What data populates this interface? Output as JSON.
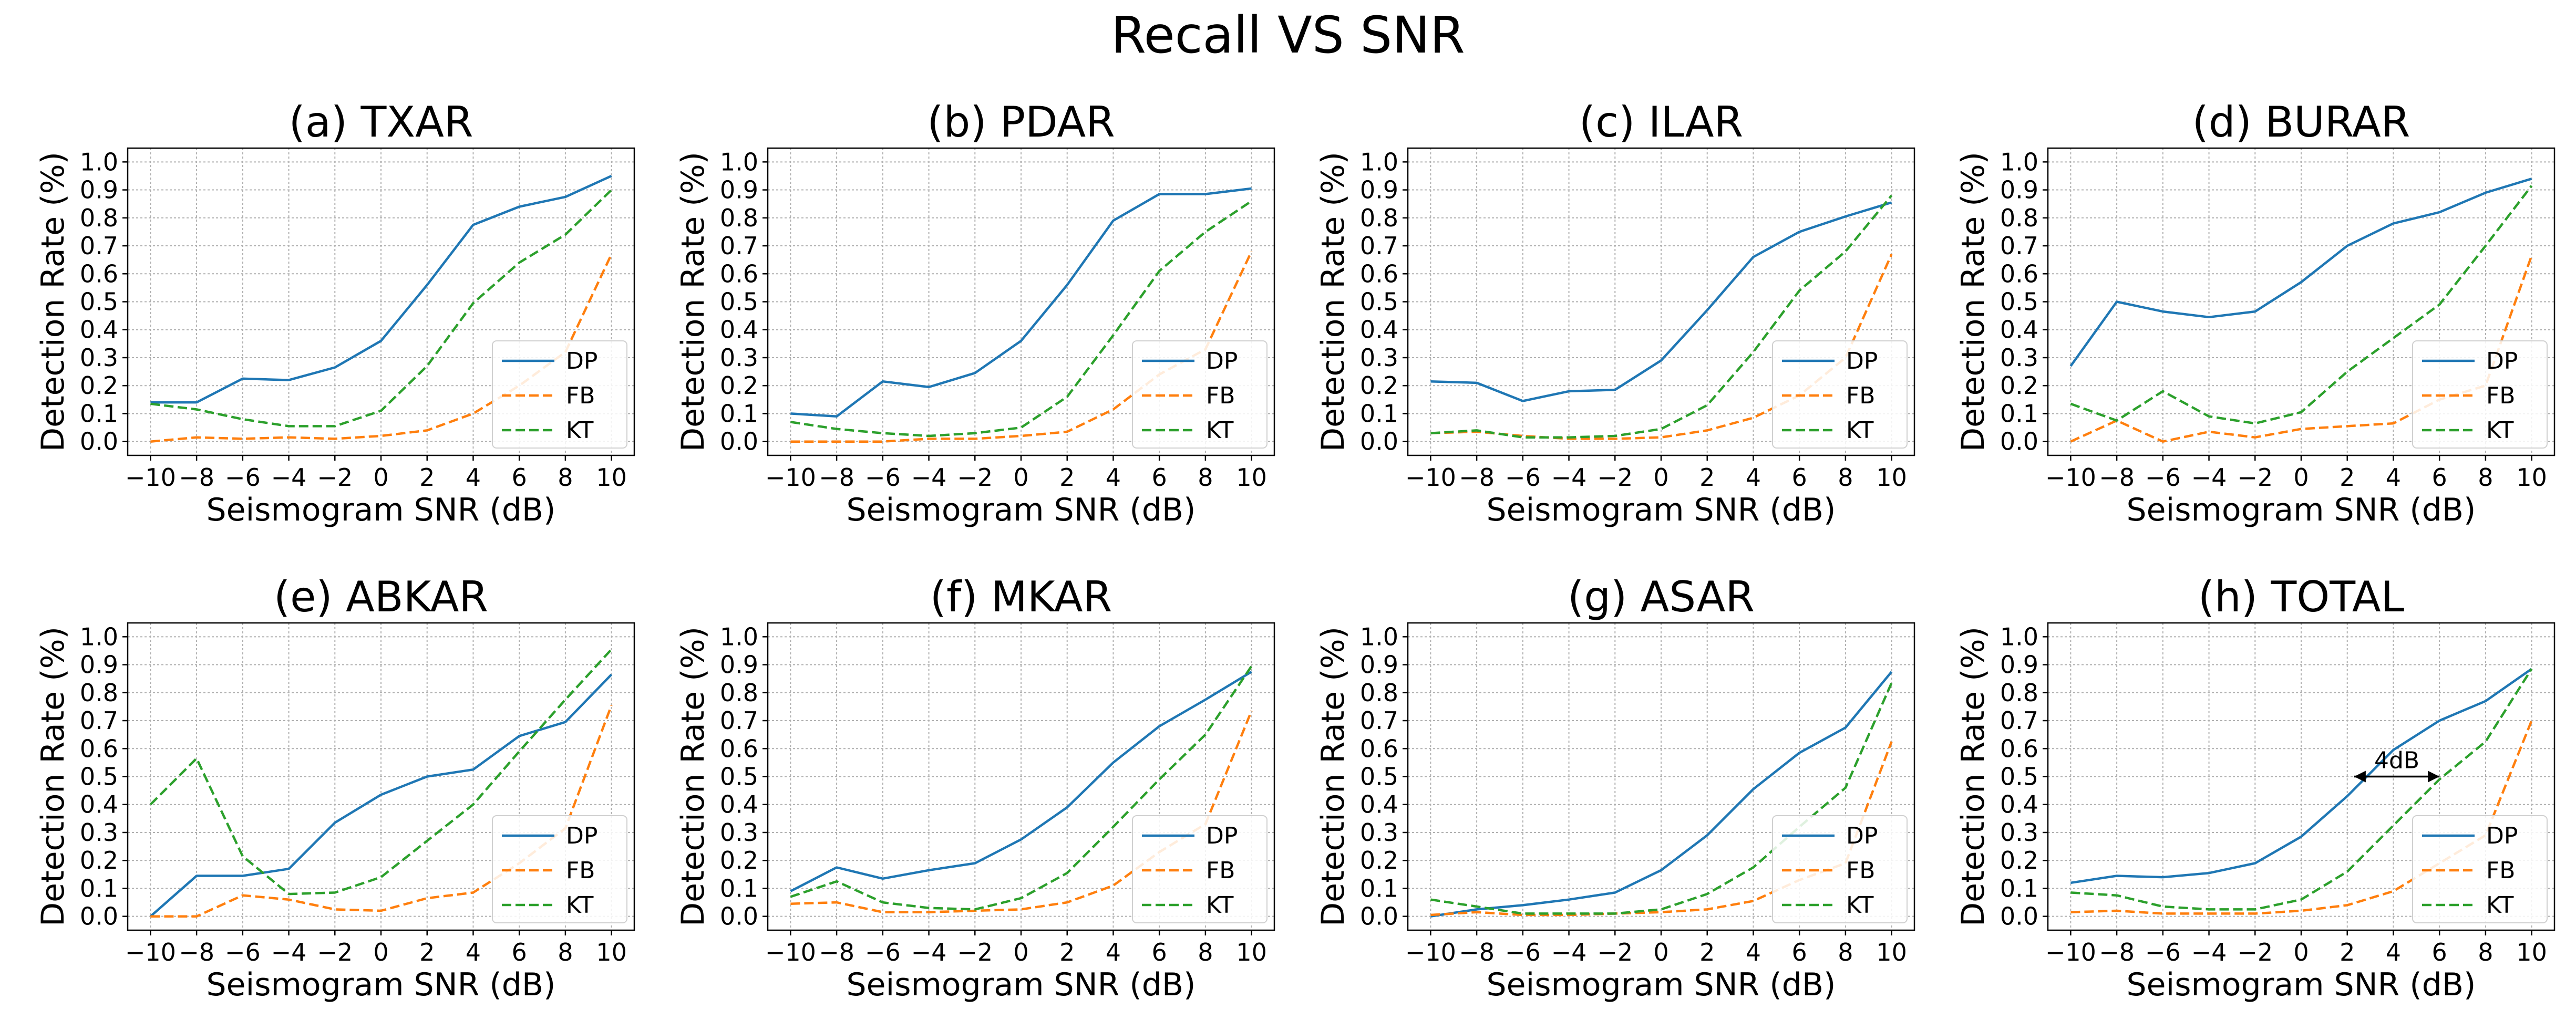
{
  "figure": {
    "title": "Recall VS SNR"
  },
  "chart_data": [
    {
      "type": "line",
      "title": "(a) TXAR",
      "xlabel": "Seismogram SNR (dB)",
      "ylabel": "Detection Rate (%)",
      "x": [
        -10,
        -8,
        -6,
        -4,
        -2,
        0,
        2,
        4,
        6,
        8,
        10
      ],
      "xlim": [
        -10,
        10
      ],
      "ylim": [
        0,
        1.0
      ],
      "grid": true,
      "legend_loc": "lower-right",
      "series": [
        {
          "name": "DP",
          "color": "#1f77b4",
          "style": "solid",
          "values": [
            0.14,
            0.14,
            0.225,
            0.22,
            0.265,
            0.36,
            0.56,
            0.775,
            0.84,
            0.875,
            0.95
          ]
        },
        {
          "name": "FB",
          "color": "#ff7f0e",
          "style": "dashed",
          "values": [
            0.0,
            0.015,
            0.01,
            0.015,
            0.01,
            0.02,
            0.04,
            0.1,
            0.2,
            0.32,
            0.67
          ]
        },
        {
          "name": "KT",
          "color": "#2ca02c",
          "style": "dashed",
          "values": [
            0.135,
            0.115,
            0.08,
            0.055,
            0.055,
            0.11,
            0.27,
            0.495,
            0.64,
            0.74,
            0.9
          ]
        }
      ]
    },
    {
      "type": "line",
      "title": "(b) PDAR",
      "xlabel": "Seismogram SNR (dB)",
      "ylabel": "Detection Rate (%)",
      "x": [
        -10,
        -8,
        -6,
        -4,
        -2,
        0,
        2,
        4,
        6,
        8,
        10
      ],
      "xlim": [
        -10,
        10
      ],
      "ylim": [
        0,
        1.0
      ],
      "grid": true,
      "legend_loc": "lower-right",
      "series": [
        {
          "name": "DP",
          "color": "#1f77b4",
          "style": "solid",
          "values": [
            0.1,
            0.09,
            0.215,
            0.195,
            0.245,
            0.36,
            0.56,
            0.79,
            0.885,
            0.885,
            0.905
          ]
        },
        {
          "name": "FB",
          "color": "#ff7f0e",
          "style": "dashed",
          "values": [
            0.0,
            0.0,
            0.0,
            0.01,
            0.01,
            0.02,
            0.035,
            0.115,
            0.24,
            0.33,
            0.68
          ]
        },
        {
          "name": "KT",
          "color": "#2ca02c",
          "style": "dashed",
          "values": [
            0.07,
            0.045,
            0.03,
            0.02,
            0.03,
            0.05,
            0.16,
            0.38,
            0.61,
            0.75,
            0.86
          ]
        }
      ]
    },
    {
      "type": "line",
      "title": "(c) ILAR",
      "xlabel": "Seismogram SNR (dB)",
      "ylabel": "Detection Rate (%)",
      "x": [
        -10,
        -8,
        -6,
        -4,
        -2,
        0,
        2,
        4,
        6,
        8,
        10
      ],
      "xlim": [
        -10,
        10
      ],
      "ylim": [
        0,
        1.0
      ],
      "grid": true,
      "legend_loc": "lower-right",
      "series": [
        {
          "name": "DP",
          "color": "#1f77b4",
          "style": "solid",
          "values": [
            0.215,
            0.21,
            0.145,
            0.18,
            0.185,
            0.29,
            0.47,
            0.66,
            0.75,
            0.805,
            0.855
          ]
        },
        {
          "name": "FB",
          "color": "#ff7f0e",
          "style": "dashed",
          "values": [
            0.03,
            0.035,
            0.02,
            0.01,
            0.01,
            0.015,
            0.04,
            0.085,
            0.165,
            0.3,
            0.67
          ]
        },
        {
          "name": "KT",
          "color": "#2ca02c",
          "style": "dashed",
          "values": [
            0.03,
            0.04,
            0.015,
            0.015,
            0.02,
            0.045,
            0.13,
            0.32,
            0.54,
            0.68,
            0.88
          ]
        }
      ]
    },
    {
      "type": "line",
      "title": "(d) BURAR",
      "xlabel": "Seismogram SNR (dB)",
      "ylabel": "Detection Rate (%)",
      "x": [
        -10,
        -8,
        -6,
        -4,
        -2,
        0,
        2,
        4,
        6,
        8,
        10
      ],
      "xlim": [
        -10,
        10
      ],
      "ylim": [
        0,
        1.0
      ],
      "grid": true,
      "legend_loc": "lower-right",
      "series": [
        {
          "name": "DP",
          "color": "#1f77b4",
          "style": "solid",
          "values": [
            0.27,
            0.5,
            0.465,
            0.445,
            0.465,
            0.57,
            0.7,
            0.78,
            0.82,
            0.89,
            0.94
          ]
        },
        {
          "name": "FB",
          "color": "#ff7f0e",
          "style": "dashed",
          "values": [
            0.0,
            0.075,
            0.0,
            0.035,
            0.015,
            0.045,
            0.055,
            0.065,
            0.15,
            0.2,
            0.665
          ]
        },
        {
          "name": "KT",
          "color": "#2ca02c",
          "style": "dashed",
          "values": [
            0.135,
            0.075,
            0.18,
            0.09,
            0.065,
            0.105,
            0.25,
            0.37,
            0.49,
            0.7,
            0.915
          ]
        }
      ]
    },
    {
      "type": "line",
      "title": "(e) ABKAR",
      "xlabel": "Seismogram SNR (dB)",
      "ylabel": "Detection Rate (%)",
      "x": [
        -10,
        -8,
        -6,
        -4,
        -2,
        0,
        2,
        4,
        6,
        8,
        10
      ],
      "xlim": [
        -10,
        10
      ],
      "ylim": [
        0,
        1.0
      ],
      "grid": true,
      "legend_loc": "lower-right",
      "series": [
        {
          "name": "DP",
          "color": "#1f77b4",
          "style": "solid",
          "values": [
            0.0,
            0.145,
            0.145,
            0.17,
            0.335,
            0.435,
            0.5,
            0.525,
            0.645,
            0.695,
            0.865
          ]
        },
        {
          "name": "FB",
          "color": "#ff7f0e",
          "style": "dashed",
          "values": [
            0.0,
            0.0,
            0.075,
            0.06,
            0.025,
            0.02,
            0.065,
            0.085,
            0.19,
            0.315,
            0.755
          ]
        },
        {
          "name": "KT",
          "color": "#2ca02c",
          "style": "dashed",
          "values": [
            0.4,
            0.565,
            0.215,
            0.08,
            0.085,
            0.14,
            0.27,
            0.4,
            0.59,
            0.775,
            0.955
          ]
        }
      ]
    },
    {
      "type": "line",
      "title": "(f) MKAR",
      "xlabel": "Seismogram SNR (dB)",
      "ylabel": "Detection Rate (%)",
      "x": [
        -10,
        -8,
        -6,
        -4,
        -2,
        0,
        2,
        4,
        6,
        8,
        10
      ],
      "xlim": [
        -10,
        10
      ],
      "ylim": [
        0,
        1.0
      ],
      "grid": true,
      "legend_loc": "lower-right",
      "series": [
        {
          "name": "DP",
          "color": "#1f77b4",
          "style": "solid",
          "values": [
            0.09,
            0.175,
            0.135,
            0.165,
            0.19,
            0.275,
            0.39,
            0.55,
            0.68,
            0.775,
            0.875
          ]
        },
        {
          "name": "FB",
          "color": "#ff7f0e",
          "style": "dashed",
          "values": [
            0.045,
            0.05,
            0.015,
            0.015,
            0.02,
            0.025,
            0.05,
            0.11,
            0.23,
            0.33,
            0.735
          ]
        },
        {
          "name": "KT",
          "color": "#2ca02c",
          "style": "dashed",
          "values": [
            0.07,
            0.125,
            0.05,
            0.03,
            0.025,
            0.065,
            0.155,
            0.32,
            0.49,
            0.65,
            0.895
          ]
        }
      ]
    },
    {
      "type": "line",
      "title": "(g) ASAR",
      "xlabel": "Seismogram SNR (dB)",
      "ylabel": "Detection Rate (%)",
      "x": [
        -10,
        -8,
        -6,
        -4,
        -2,
        0,
        2,
        4,
        6,
        8,
        10
      ],
      "xlim": [
        -10,
        10
      ],
      "ylim": [
        0,
        1.0
      ],
      "grid": true,
      "legend_loc": "lower-right",
      "series": [
        {
          "name": "DP",
          "color": "#1f77b4",
          "style": "solid",
          "values": [
            0.0,
            0.025,
            0.04,
            0.06,
            0.085,
            0.165,
            0.29,
            0.455,
            0.585,
            0.675,
            0.875
          ]
        },
        {
          "name": "FB",
          "color": "#ff7f0e",
          "style": "dashed",
          "values": [
            0.005,
            0.015,
            0.005,
            0.005,
            0.01,
            0.015,
            0.025,
            0.055,
            0.13,
            0.19,
            0.625
          ]
        },
        {
          "name": "KT",
          "color": "#2ca02c",
          "style": "dashed",
          "values": [
            0.06,
            0.035,
            0.01,
            0.01,
            0.01,
            0.025,
            0.08,
            0.175,
            0.32,
            0.46,
            0.835
          ]
        }
      ]
    },
    {
      "type": "line",
      "title": "(h) TOTAL",
      "xlabel": "Seismogram SNR (dB)",
      "ylabel": "Detection Rate (%)",
      "x": [
        -10,
        -8,
        -6,
        -4,
        -2,
        0,
        2,
        4,
        6,
        8,
        10
      ],
      "xlim": [
        -10,
        10
      ],
      "ylim": [
        0,
        1.0
      ],
      "grid": true,
      "legend_loc": "lower-right",
      "annotation": {
        "text": "4dB",
        "x_start": 2.3,
        "x_end": 6.0,
        "y": 0.5
      },
      "series": [
        {
          "name": "DP",
          "color": "#1f77b4",
          "style": "solid",
          "values": [
            0.12,
            0.145,
            0.14,
            0.155,
            0.19,
            0.285,
            0.43,
            0.595,
            0.7,
            0.77,
            0.885
          ]
        },
        {
          "name": "FB",
          "color": "#ff7f0e",
          "style": "dashed",
          "values": [
            0.015,
            0.02,
            0.01,
            0.01,
            0.01,
            0.02,
            0.04,
            0.09,
            0.19,
            0.29,
            0.7
          ]
        },
        {
          "name": "KT",
          "color": "#2ca02c",
          "style": "dashed",
          "values": [
            0.085,
            0.075,
            0.035,
            0.025,
            0.025,
            0.06,
            0.16,
            0.325,
            0.49,
            0.625,
            0.885
          ]
        }
      ]
    }
  ]
}
